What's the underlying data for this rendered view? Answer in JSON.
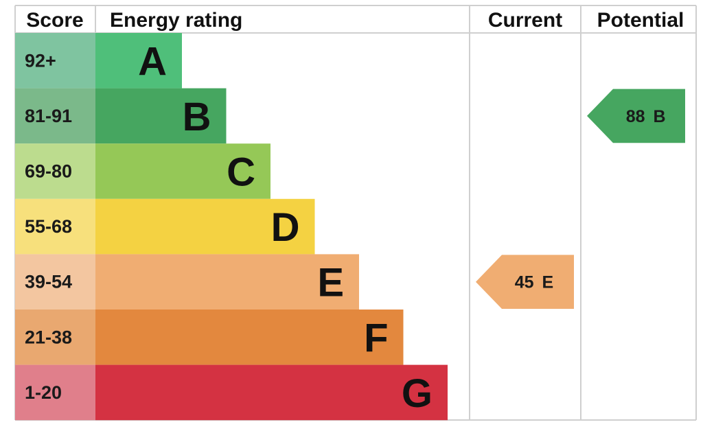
{
  "headers": {
    "score": "Score",
    "energy_rating": "Energy rating",
    "current": "Current",
    "potential": "Potential"
  },
  "chart_data": {
    "type": "bar",
    "categories": [
      "A",
      "B",
      "C",
      "D",
      "E",
      "F",
      "G"
    ],
    "bands": [
      {
        "letter": "A",
        "score": "92+",
        "color": "#4fbf7a",
        "score_color": "#7fc4a0"
      },
      {
        "letter": "B",
        "score": "81-91",
        "color": "#46a660",
        "score_color": "#7bb98a"
      },
      {
        "letter": "C",
        "score": "69-80",
        "color": "#95c857",
        "score_color": "#bcdc8e"
      },
      {
        "letter": "D",
        "score": "55-68",
        "color": "#f4d242",
        "score_color": "#f7e07c"
      },
      {
        "letter": "E",
        "score": "39-54",
        "color": "#f0ad72",
        "score_color": "#f3c6a0"
      },
      {
        "letter": "F",
        "score": "21-38",
        "color": "#e3883e",
        "score_color": "#e9a870"
      },
      {
        "letter": "G",
        "score": "1-20",
        "color": "#d43242",
        "score_color": "#e07f8b"
      }
    ],
    "current": {
      "value": 45,
      "band": "E",
      "text": "45",
      "letter": "E",
      "color": "#f0ad72"
    },
    "potential": {
      "value": 88,
      "band": "B",
      "text": "88",
      "letter": "B",
      "color": "#46a660"
    }
  }
}
